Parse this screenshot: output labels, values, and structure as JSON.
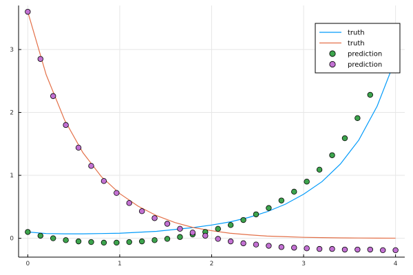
{
  "chart_data": {
    "type": "scatter",
    "title": "",
    "xlabel": "",
    "ylabel": "",
    "xlim": [
      -0.1,
      4.1
    ],
    "ylim": [
      -0.3,
      3.7
    ],
    "xticks": [
      0,
      1,
      2,
      3,
      4
    ],
    "yticks": [
      0,
      1,
      2,
      3
    ],
    "grid": true,
    "legend_position": "top-right",
    "series": [
      {
        "name": "truth",
        "kind": "line",
        "color": "#009AFA",
        "x": [
          0,
          0.2,
          0.4,
          0.6,
          0.8,
          1.0,
          1.2,
          1.4,
          1.6,
          1.8,
          2.0,
          2.2,
          2.4,
          2.6,
          2.8,
          3.0,
          3.2,
          3.4,
          3.6,
          3.8,
          4.0
        ],
        "y": [
          0.1,
          0.075,
          0.07,
          0.07,
          0.075,
          0.08,
          0.095,
          0.11,
          0.14,
          0.17,
          0.21,
          0.26,
          0.33,
          0.42,
          0.54,
          0.7,
          0.9,
          1.18,
          1.56,
          2.1,
          2.85
        ]
      },
      {
        "name": "truth",
        "kind": "line",
        "color": "#E36F47",
        "x": [
          0,
          0.2,
          0.4,
          0.6,
          0.8,
          1.0,
          1.2,
          1.4,
          1.6,
          1.8,
          2.0,
          2.2,
          2.4,
          2.6,
          2.8,
          3.0,
          3.2,
          3.4,
          3.6,
          3.8,
          4.0
        ],
        "y": [
          3.6,
          2.6,
          1.88,
          1.36,
          0.98,
          0.71,
          0.51,
          0.36,
          0.25,
          0.17,
          0.12,
          0.08,
          0.055,
          0.035,
          0.025,
          0.015,
          0.01,
          0.006,
          0.004,
          0.002,
          0.001
        ]
      },
      {
        "name": "prediction",
        "kind": "scatter",
        "color": "#3DA44D",
        "x": [
          0,
          0.1379,
          0.2759,
          0.4138,
          0.5517,
          0.6897,
          0.8276,
          0.9655,
          1.1034,
          1.2414,
          1.3793,
          1.5172,
          1.6552,
          1.7931,
          1.931,
          2.069,
          2.2069,
          2.3448,
          2.4828,
          2.6207,
          2.7586,
          2.8966,
          3.0345,
          3.1724,
          3.3103,
          3.4483,
          3.5862,
          3.7241,
          3.8621,
          4.0
        ],
        "y": [
          0.1,
          0.04,
          0.0,
          -0.03,
          -0.05,
          -0.06,
          -0.07,
          -0.07,
          -0.06,
          -0.05,
          -0.03,
          -0.01,
          0.02,
          0.06,
          0.1,
          0.15,
          0.21,
          0.29,
          0.38,
          0.48,
          0.6,
          0.74,
          0.9,
          1.09,
          1.32,
          1.59,
          1.91,
          2.28,
          2.72,
          3.25
        ]
      },
      {
        "name": "prediction",
        "kind": "scatter",
        "color": "#C271D2",
        "x": [
          0,
          0.1379,
          0.2759,
          0.4138,
          0.5517,
          0.6897,
          0.8276,
          0.9655,
          1.1034,
          1.2414,
          1.3793,
          1.5172,
          1.6552,
          1.7931,
          1.931,
          2.069,
          2.2069,
          2.3448,
          2.4828,
          2.6207,
          2.7586,
          2.8966,
          3.0345,
          3.1724,
          3.3103,
          3.4483,
          3.5862,
          3.7241,
          3.8621,
          4.0
        ],
        "y": [
          3.6,
          2.85,
          2.26,
          1.8,
          1.44,
          1.15,
          0.91,
          0.72,
          0.56,
          0.43,
          0.32,
          0.23,
          0.15,
          0.09,
          0.04,
          -0.01,
          -0.05,
          -0.08,
          -0.1,
          -0.12,
          -0.14,
          -0.15,
          -0.16,
          -0.17,
          -0.17,
          -0.18,
          -0.18,
          -0.18,
          -0.19,
          -0.19
        ]
      }
    ]
  }
}
